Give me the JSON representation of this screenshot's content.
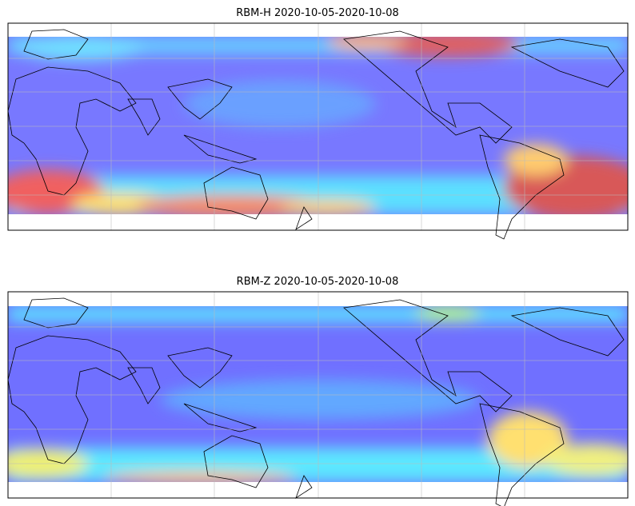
{
  "panels": [
    {
      "title": "RBM-H 2020-10-05-2020-10-08"
    },
    {
      "title": "RBM-Z 2020-10-05-2020-10-08"
    }
  ]
}
